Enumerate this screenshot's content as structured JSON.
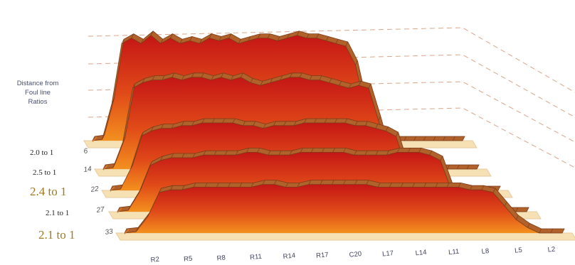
{
  "chart_data": {
    "type": "area",
    "view": "3d-stacked-ribbons",
    "title": "",
    "ylabel": "Distance from Foul line Ratios",
    "x_ticks": [
      "R2",
      "R5",
      "R8",
      "R11",
      "R14",
      "R17",
      "C20",
      "L17",
      "L14",
      "L11",
      "L8",
      "L5",
      "L2"
    ],
    "depth_ticks": [
      "6",
      "14",
      "22",
      "27",
      "33"
    ],
    "series_labels": [
      "2.0 to 1",
      "2.5 to 1",
      "2.4 to 1",
      "2.1 to 1",
      "2.1 to 1"
    ],
    "series_label_emphasis": [
      false,
      false,
      true,
      false,
      true
    ],
    "series": [
      {
        "name": "6",
        "values": [
          0,
          0.5,
          14,
          36,
          38,
          36,
          39,
          36,
          38,
          36,
          37,
          36,
          38,
          37,
          38,
          36,
          37,
          38,
          38,
          37,
          38,
          39,
          38,
          38,
          37,
          36,
          35,
          28,
          12,
          2,
          0,
          0,
          0,
          0,
          0,
          0,
          0,
          0,
          0
        ]
      },
      {
        "name": "14",
        "values": [
          0,
          0.5,
          10,
          30,
          32,
          33,
          33,
          34,
          33,
          34,
          34,
          33,
          34,
          33,
          34,
          32,
          31,
          32,
          33,
          34,
          34,
          33,
          33,
          32,
          31,
          30,
          31,
          30,
          18,
          5,
          0,
          0,
          0,
          0,
          0,
          0,
          0,
          0,
          0
        ]
      },
      {
        "name": "22",
        "values": [
          0,
          0.5,
          8,
          20,
          22,
          23,
          23,
          24,
          24,
          25,
          25,
          25,
          25,
          24,
          24,
          23,
          24,
          24,
          24,
          25,
          25,
          25,
          25,
          25,
          24,
          24,
          23,
          22,
          20,
          8,
          2,
          0,
          0,
          0,
          0,
          0,
          0,
          0,
          0
        ]
      },
      {
        "name": "27",
        "values": [
          0,
          0.5,
          7,
          17,
          19,
          20,
          20,
          20,
          21,
          21,
          21,
          21,
          22,
          22,
          21,
          21,
          21,
          22,
          22,
          22,
          22,
          22,
          21,
          21,
          21,
          21,
          22,
          22,
          22,
          21,
          19,
          8,
          2,
          0,
          0,
          0,
          0,
          0,
          0
        ]
      },
      {
        "name": "33",
        "values": [
          0,
          0.5,
          6,
          15,
          16,
          16,
          17,
          17,
          17,
          17,
          17,
          17,
          18,
          18,
          17,
          17,
          18,
          18,
          18,
          18,
          18,
          18,
          17,
          17,
          17,
          17,
          17,
          17,
          17,
          17,
          16,
          16,
          15,
          10,
          5,
          2,
          0,
          0,
          0
        ]
      }
    ],
    "y_range": [
      0,
      40
    ],
    "grid": true,
    "colors": {
      "top": "#c41616",
      "bottom": "#f3901f",
      "ridge": "#b0622a",
      "ridge_dark": "#7a3a18",
      "floor": "#f6e1b5",
      "grid": "#d9a68c"
    }
  }
}
